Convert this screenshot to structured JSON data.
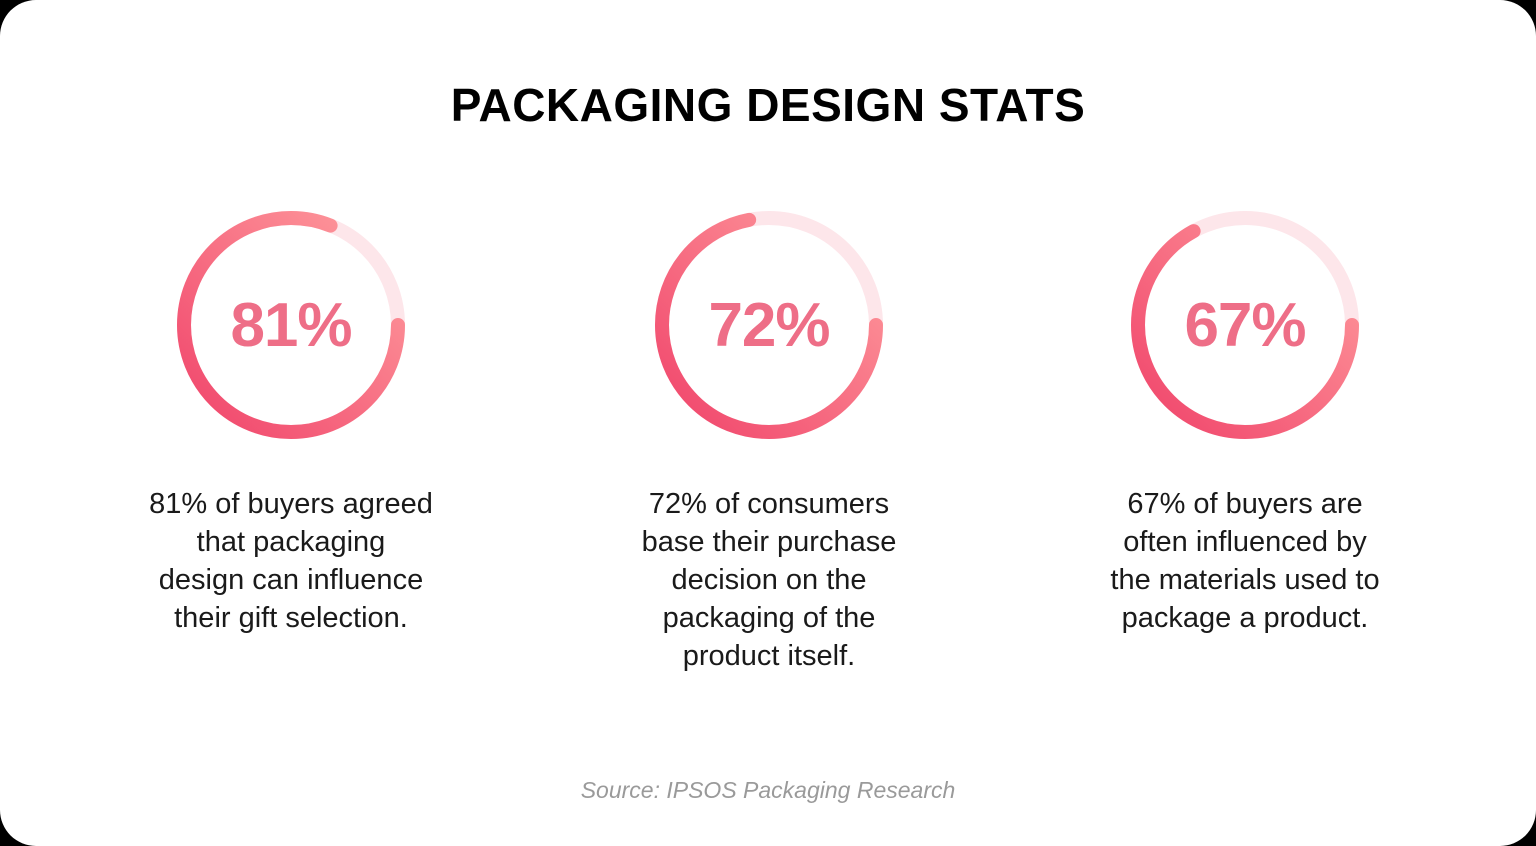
{
  "title": "PACKAGING DESIGN STATS",
  "colors": {
    "percent_text": "#EE6E87",
    "track": "#FDE6EA",
    "gradient_start": "#F0436A",
    "gradient_end": "#FF9E9F",
    "body_text": "#1A1A1A",
    "source_text": "#9A9A9A"
  },
  "stats": [
    {
      "value": 81,
      "label": "81%",
      "description": "81% of buyers agreed\nthat packaging\ndesign can influence\ntheir gift selection."
    },
    {
      "value": 72,
      "label": "72%",
      "description": "72% of consumers\nbase their purchase\ndecision on the\npackaging of the\nproduct itself."
    },
    {
      "value": 67,
      "label": "67%",
      "description": "67% of buyers are\noften influenced by\nthe materials used to\npackage a product."
    }
  ],
  "source": "Source: IPSOS Packaging Research",
  "chart_data": {
    "type": "pie",
    "subtype": "radial-progress",
    "title": "PACKAGING DESIGN STATS",
    "categories": [
      "Buyers agreeing packaging design can influence gift selection",
      "Consumers basing purchase decision on packaging",
      "Buyers influenced by packaging materials"
    ],
    "values": [
      81,
      72,
      67
    ],
    "unit": "%",
    "max": 100,
    "annotations": [
      "Source: IPSOS Packaging Research"
    ],
    "legend": "none"
  }
}
